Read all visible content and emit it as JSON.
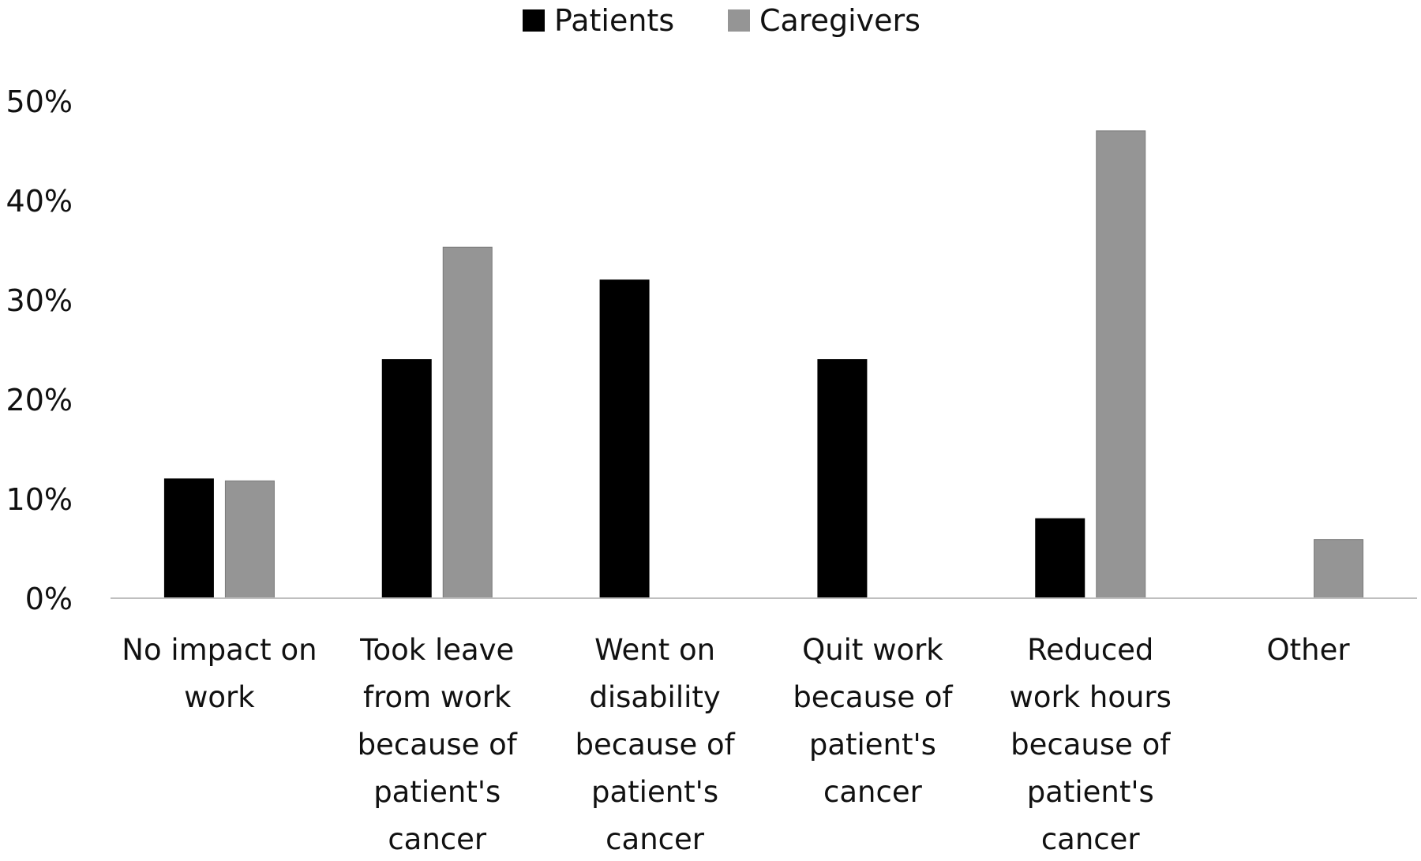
{
  "chart_data": {
    "type": "bar",
    "title": "",
    "xlabel": "",
    "ylabel": "",
    "ylim": [
      0,
      50
    ],
    "grid": false,
    "legend_position": "top-center",
    "y_ticks": [
      "0%",
      "10%",
      "20%",
      "30%",
      "40%",
      "50%"
    ],
    "y_tick_values": [
      0,
      10,
      20,
      30,
      40,
      50
    ],
    "categories": [
      "No impact on work",
      "Took leave from work because of patient's cancer",
      "Went on disability because of patient's cancer",
      "Quit work because of patient's cancer",
      "Reduced work hours because of patient's cancer",
      "Other"
    ],
    "category_lines": [
      [
        "No impact on",
        "work"
      ],
      [
        "Took leave",
        "from work",
        "because of",
        "patient's",
        "cancer"
      ],
      [
        "Went on",
        "disability",
        "because of",
        "patient's",
        "cancer"
      ],
      [
        "Quit work",
        "because of",
        "patient's",
        "cancer"
      ],
      [
        "Reduced",
        "work hours",
        "because of",
        "patient's",
        "cancer"
      ],
      [
        "Other"
      ]
    ],
    "series": [
      {
        "name": "Patients",
        "color": "#000000",
        "values": [
          12,
          24,
          32,
          24,
          8,
          0
        ]
      },
      {
        "name": "Caregivers",
        "color": "#959595",
        "values": [
          11.8,
          35.3,
          0,
          0,
          47,
          5.9
        ]
      }
    ]
  }
}
